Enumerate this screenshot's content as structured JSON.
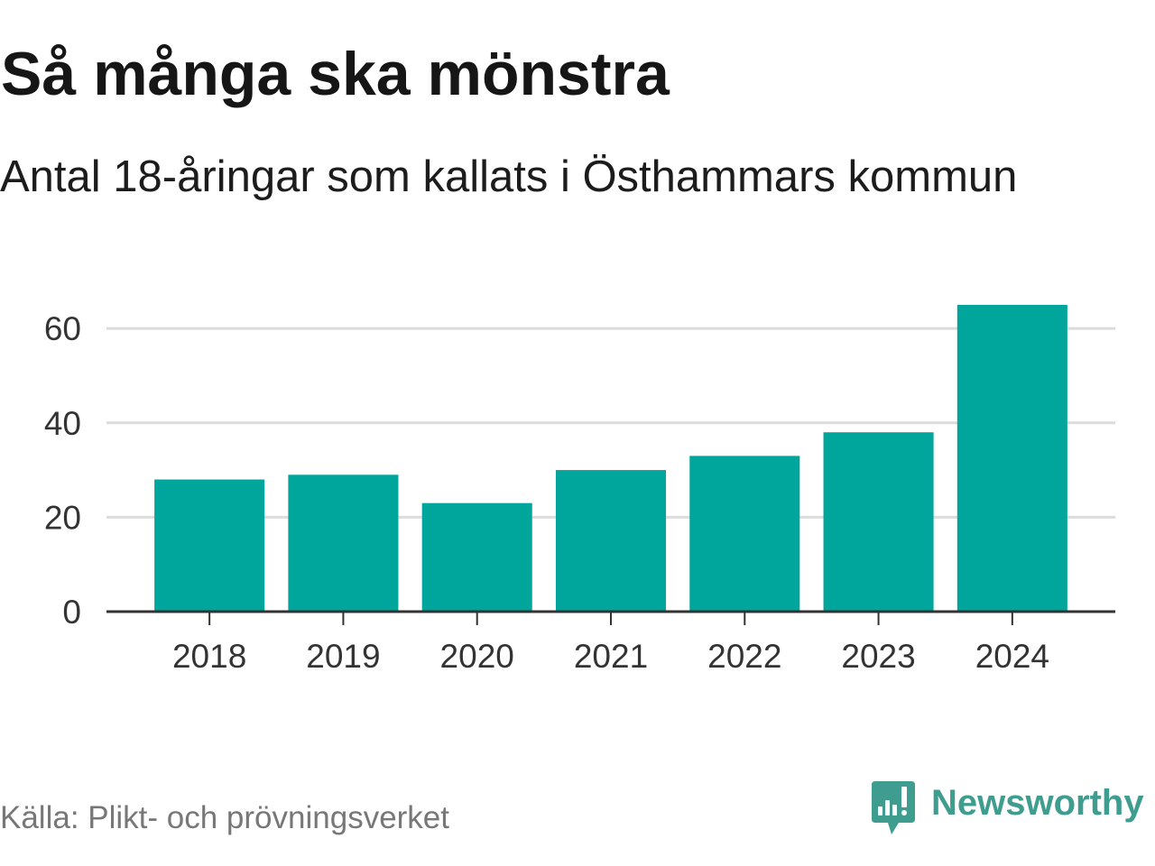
{
  "chart_data": {
    "type": "bar",
    "title": "Så många ska mönstra",
    "subtitle": "Antal 18-åringar som kallats i Östhammars kommun",
    "categories": [
      "2018",
      "2019",
      "2020",
      "2021",
      "2022",
      "2023",
      "2024"
    ],
    "values": [
      28,
      29,
      23,
      30,
      33,
      38,
      65
    ],
    "xlabel": "",
    "ylabel": "",
    "ylim": [
      0,
      65
    ],
    "yticks": [
      0,
      20,
      40,
      60
    ],
    "grid": true,
    "legend": "none"
  },
  "source": "Källa: Plikt- och prövningsverket",
  "brand": {
    "name": "Newsworthy",
    "logo_icon": "newsworthy-logo-icon"
  },
  "colors": {
    "bar": "#00a59b",
    "grid": "#dcdcdc",
    "axis": "#333333",
    "brand": "#3f9d8f",
    "logo_glyph": "#ffffff"
  }
}
